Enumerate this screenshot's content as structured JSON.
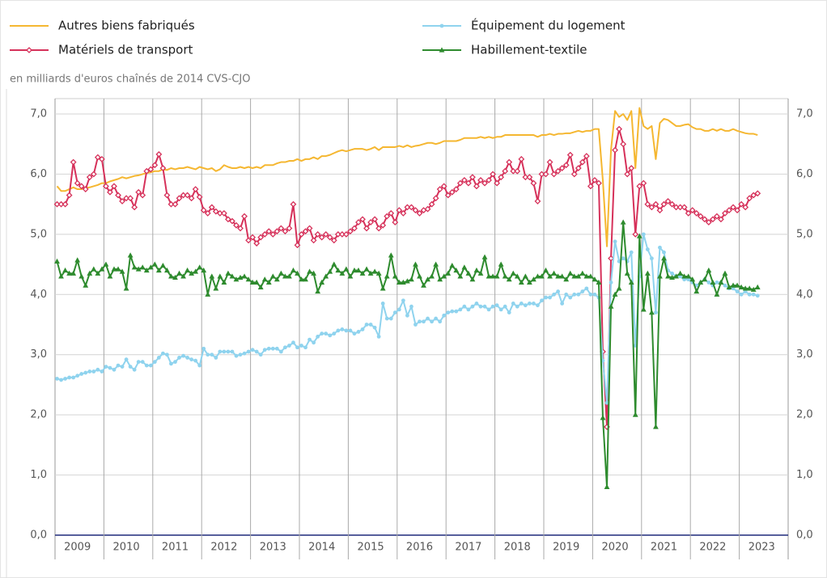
{
  "chart_data": {
    "type": "line",
    "subtitle": "en milliards d'euros chaînés de 2014 CVS-CJO",
    "categories": [
      null,
      null,
      null,
      null,
      null,
      null,
      "2009",
      null,
      null,
      null,
      null,
      null,
      null,
      null,
      null,
      null,
      null,
      null,
      "2010",
      null,
      null,
      null,
      null,
      null,
      null,
      null,
      null,
      null,
      null,
      null,
      "2011",
      null,
      null,
      null,
      null,
      null,
      null,
      null,
      null,
      null,
      null,
      null,
      "2012",
      null,
      null,
      null,
      null,
      null,
      null,
      null,
      null,
      null,
      null,
      null,
      "2013",
      null,
      null,
      null,
      null,
      null,
      null,
      null,
      null,
      null,
      null,
      null,
      "2014",
      null,
      null,
      null,
      null,
      null,
      null,
      null,
      null,
      null,
      null,
      null,
      "2015",
      null,
      null,
      null,
      null,
      null,
      null,
      null,
      null,
      null,
      null,
      null,
      "2016",
      null,
      null,
      null,
      null,
      null,
      null,
      null,
      null,
      null,
      null,
      null,
      "2017",
      null,
      null,
      null,
      null,
      null,
      null,
      null,
      null,
      null,
      null,
      null,
      "2018",
      null,
      null,
      null,
      null,
      null,
      null,
      null,
      null,
      null,
      null,
      null,
      "2019",
      null,
      null,
      null,
      null,
      null,
      null,
      null,
      null,
      null,
      null,
      null,
      "2020",
      null,
      null,
      null,
      null,
      null,
      null,
      null,
      null,
      null,
      null,
      null,
      "2021",
      null,
      null,
      null,
      null,
      null,
      null,
      null,
      null,
      null,
      null,
      null,
      "2022",
      null,
      null,
      null,
      null,
      null,
      null,
      null,
      null,
      null,
      null,
      null,
      "2023",
      null,
      null,
      null,
      null,
      null
    ],
    "series": [
      {
        "name": "Autres biens fabriqués",
        "color": "#f5b731",
        "marker": "none",
        "values": [
          5.8,
          5.72,
          5.72,
          5.75,
          5.78,
          5.75,
          5.75,
          5.77,
          5.78,
          5.8,
          5.82,
          5.85,
          5.85,
          5.88,
          5.9,
          5.92,
          5.95,
          5.93,
          5.95,
          5.97,
          5.98,
          6.0,
          6.02,
          6.03,
          6.05,
          6.05,
          6.08,
          6.07,
          6.1,
          6.08,
          6.1,
          6.1,
          6.12,
          6.1,
          6.08,
          6.12,
          6.1,
          6.08,
          6.1,
          6.05,
          6.08,
          6.15,
          6.12,
          6.1,
          6.1,
          6.12,
          6.1,
          6.12,
          6.1,
          6.12,
          6.1,
          6.15,
          6.15,
          6.15,
          6.18,
          6.2,
          6.2,
          6.22,
          6.22,
          6.25,
          6.22,
          6.25,
          6.25,
          6.28,
          6.25,
          6.3,
          6.3,
          6.32,
          6.35,
          6.38,
          6.4,
          6.38,
          6.4,
          6.42,
          6.42,
          6.42,
          6.4,
          6.42,
          6.45,
          6.4,
          6.45,
          6.45,
          6.45,
          6.45,
          6.47,
          6.45,
          6.48,
          6.45,
          6.47,
          6.48,
          6.5,
          6.52,
          6.52,
          6.5,
          6.52,
          6.55,
          6.55,
          6.55,
          6.55,
          6.57,
          6.6,
          6.6,
          6.6,
          6.6,
          6.62,
          6.6,
          6.62,
          6.6,
          6.62,
          6.62,
          6.65,
          6.65,
          6.65,
          6.65,
          6.65,
          6.65,
          6.65,
          6.65,
          6.62,
          6.65,
          6.65,
          6.67,
          6.65,
          6.67,
          6.67,
          6.68,
          6.68,
          6.7,
          6.72,
          6.7,
          6.72,
          6.72,
          6.75,
          6.75,
          5.9,
          4.8,
          6.4,
          7.05,
          6.95,
          7.0,
          6.9,
          7.05,
          6.1,
          7.1,
          6.8,
          6.75,
          6.8,
          6.25,
          6.85,
          6.92,
          6.9,
          6.85,
          6.8,
          6.8,
          6.82,
          6.83,
          6.78,
          6.75,
          6.75,
          6.72,
          6.72,
          6.75,
          6.72,
          6.75,
          6.72,
          6.72,
          6.75,
          6.72,
          6.7,
          6.68,
          6.67,
          6.67,
          6.65,
          null,
          null,
          null,
          null,
          null,
          null,
          null
        ]
      },
      {
        "name": "Matériels de transport",
        "color": "#d6315a",
        "marker": "diamond",
        "values": [
          5.5,
          5.5,
          5.5,
          5.65,
          6.2,
          5.85,
          5.8,
          5.75,
          5.95,
          6.0,
          6.28,
          6.25,
          5.8,
          5.7,
          5.8,
          5.65,
          5.55,
          5.6,
          5.6,
          5.45,
          5.7,
          5.65,
          6.05,
          6.08,
          6.15,
          6.33,
          6.1,
          5.65,
          5.5,
          5.5,
          5.6,
          5.65,
          5.65,
          5.6,
          5.75,
          5.62,
          5.4,
          5.35,
          5.45,
          5.38,
          5.35,
          5.35,
          5.25,
          5.22,
          5.15,
          5.1,
          5.3,
          4.9,
          4.95,
          4.85,
          4.95,
          5.0,
          5.05,
          5.0,
          5.05,
          5.1,
          5.05,
          5.1,
          5.5,
          4.82,
          5.0,
          5.05,
          5.1,
          4.9,
          5.0,
          4.95,
          5.0,
          4.95,
          4.9,
          5.0,
          5.0,
          5.0,
          5.05,
          5.1,
          5.2,
          5.25,
          5.1,
          5.2,
          5.25,
          5.1,
          5.15,
          5.3,
          5.35,
          5.2,
          5.4,
          5.35,
          5.45,
          5.45,
          5.4,
          5.35,
          5.4,
          5.42,
          5.5,
          5.6,
          5.75,
          5.8,
          5.65,
          5.7,
          5.75,
          5.85,
          5.9,
          5.85,
          5.95,
          5.8,
          5.9,
          5.85,
          5.9,
          6.0,
          5.85,
          5.95,
          6.05,
          6.2,
          6.05,
          6.05,
          6.25,
          5.95,
          5.95,
          5.85,
          5.55,
          6.0,
          6.0,
          6.2,
          6.0,
          6.05,
          6.1,
          6.15,
          6.32,
          6.0,
          6.1,
          6.2,
          6.3,
          5.8,
          5.9,
          5.85,
          3.05,
          1.8,
          4.6,
          6.4,
          6.75,
          6.5,
          6.0,
          6.1,
          5.0,
          5.8,
          5.85,
          5.5,
          5.45,
          5.5,
          5.4,
          5.5,
          5.55,
          5.5,
          5.45,
          5.45,
          5.45,
          5.35,
          5.4,
          5.35,
          5.3,
          5.25,
          5.2,
          5.25,
          5.3,
          5.25,
          5.35,
          5.4,
          5.45,
          5.4,
          5.5,
          5.45,
          5.6,
          5.65,
          5.68,
          null,
          null,
          null,
          null,
          null,
          null,
          null
        ]
      },
      {
        "name": "Équipement du logement",
        "color": "#8fd3ee",
        "marker": "circle",
        "values": [
          2.6,
          2.58,
          2.6,
          2.62,
          2.62,
          2.65,
          2.68,
          2.7,
          2.72,
          2.72,
          2.75,
          2.72,
          2.8,
          2.78,
          2.75,
          2.82,
          2.8,
          2.92,
          2.8,
          2.75,
          2.88,
          2.88,
          2.82,
          2.82,
          2.88,
          2.95,
          3.02,
          3.0,
          2.85,
          2.88,
          2.95,
          2.98,
          2.95,
          2.92,
          2.9,
          2.82,
          3.1,
          3.0,
          3.0,
          2.95,
          3.05,
          3.05,
          3.05,
          3.05,
          2.98,
          3.0,
          3.02,
          3.05,
          3.08,
          3.05,
          3.0,
          3.08,
          3.1,
          3.1,
          3.1,
          3.05,
          3.12,
          3.15,
          3.2,
          3.12,
          3.15,
          3.12,
          3.25,
          3.2,
          3.3,
          3.35,
          3.35,
          3.32,
          3.35,
          3.4,
          3.42,
          3.4,
          3.4,
          3.35,
          3.38,
          3.42,
          3.5,
          3.5,
          3.45,
          3.3,
          3.85,
          3.6,
          3.6,
          3.7,
          3.75,
          3.9,
          3.65,
          3.8,
          3.5,
          3.55,
          3.55,
          3.6,
          3.55,
          3.6,
          3.55,
          3.65,
          3.7,
          3.72,
          3.72,
          3.75,
          3.8,
          3.75,
          3.8,
          3.85,
          3.8,
          3.8,
          3.75,
          3.8,
          3.82,
          3.75,
          3.8,
          3.7,
          3.85,
          3.8,
          3.85,
          3.82,
          3.85,
          3.85,
          3.82,
          3.9,
          3.95,
          3.95,
          4.0,
          4.05,
          3.85,
          4.0,
          3.95,
          4.0,
          4.0,
          4.05,
          4.1,
          4.0,
          4.0,
          3.95,
          2.9,
          2.2,
          4.2,
          4.88,
          4.55,
          4.6,
          4.55,
          4.7,
          3.15,
          4.3,
          5.0,
          4.75,
          4.6,
          3.7,
          4.78,
          4.7,
          4.4,
          4.35,
          4.3,
          4.3,
          4.25,
          4.25,
          4.2,
          4.15,
          4.2,
          4.25,
          4.2,
          4.15,
          4.2,
          4.2,
          4.15,
          4.1,
          4.1,
          4.05,
          4.0,
          4.05,
          4.0,
          4.0,
          3.98,
          null,
          null,
          null,
          null,
          null,
          null,
          null
        ]
      },
      {
        "name": "Habillement-textile",
        "color": "#2e8b2e",
        "marker": "triangle",
        "values": [
          4.55,
          4.3,
          4.4,
          4.35,
          4.35,
          4.57,
          4.3,
          4.15,
          4.35,
          4.42,
          4.35,
          4.42,
          4.5,
          4.3,
          4.42,
          4.42,
          4.38,
          4.1,
          4.65,
          4.45,
          4.42,
          4.45,
          4.4,
          4.45,
          4.5,
          4.4,
          4.48,
          4.4,
          4.3,
          4.28,
          4.35,
          4.3,
          4.4,
          4.35,
          4.38,
          4.45,
          4.4,
          4.0,
          4.3,
          4.1,
          4.3,
          4.2,
          4.35,
          4.3,
          4.25,
          4.28,
          4.3,
          4.25,
          4.2,
          4.2,
          4.12,
          4.25,
          4.2,
          4.3,
          4.25,
          4.35,
          4.3,
          4.3,
          4.4,
          4.35,
          4.25,
          4.25,
          4.38,
          4.35,
          4.05,
          4.2,
          4.3,
          4.38,
          4.5,
          4.4,
          4.35,
          4.42,
          4.3,
          4.4,
          4.4,
          4.35,
          4.42,
          4.35,
          4.38,
          4.35,
          4.1,
          4.3,
          4.65,
          4.3,
          4.2,
          4.2,
          4.22,
          4.25,
          4.5,
          4.3,
          4.15,
          4.25,
          4.3,
          4.5,
          4.25,
          4.3,
          4.35,
          4.48,
          4.4,
          4.3,
          4.45,
          4.35,
          4.25,
          4.4,
          4.35,
          4.62,
          4.3,
          4.3,
          4.3,
          4.5,
          4.3,
          4.25,
          4.35,
          4.3,
          4.2,
          4.3,
          4.2,
          4.25,
          4.3,
          4.3,
          4.4,
          4.3,
          4.35,
          4.3,
          4.3,
          4.25,
          4.35,
          4.3,
          4.3,
          4.35,
          4.3,
          4.3,
          4.25,
          4.2,
          1.95,
          0.8,
          3.8,
          4.0,
          4.1,
          5.2,
          4.35,
          4.2,
          2.0,
          4.97,
          3.75,
          4.35,
          3.7,
          1.8,
          4.3,
          4.6,
          4.3,
          4.28,
          4.3,
          4.35,
          4.3,
          4.3,
          4.25,
          4.05,
          4.2,
          4.25,
          4.4,
          4.2,
          4.0,
          4.2,
          4.35,
          4.12,
          4.15,
          4.15,
          4.12,
          4.1,
          4.1,
          4.08,
          4.12,
          null,
          null,
          null,
          null,
          null,
          null,
          null
        ]
      }
    ],
    "ylim": [
      0,
      7
    ],
    "yticks": [
      {
        "value": 0,
        "label": "0,0"
      },
      {
        "value": 1,
        "label": "1,0"
      },
      {
        "value": 2,
        "label": "2,0"
      },
      {
        "value": 3,
        "label": "3,0"
      },
      {
        "value": 4,
        "label": "4,0"
      },
      {
        "value": 5,
        "label": "5,0"
      },
      {
        "value": 6,
        "label": "6,0"
      },
      {
        "value": 7,
        "label": "7,0"
      }
    ],
    "grid": true
  }
}
